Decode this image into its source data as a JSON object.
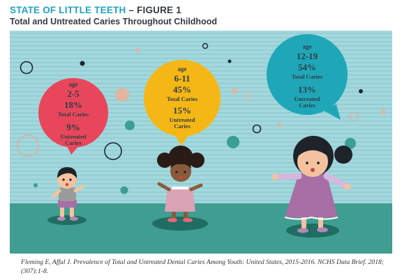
{
  "header": {
    "title": "STATE OF LITTLE TEETH",
    "figure_label": "– FIGURE 1",
    "subtitle": "Total and Untreated Caries Throughout Childhood"
  },
  "chart_data": {
    "type": "bar",
    "title": "Total and Untreated Caries Throughout Childhood",
    "categories": [
      "2-5",
      "6-11",
      "12-19"
    ],
    "series": [
      {
        "name": "Total Caries",
        "values": [
          18,
          45,
          54
        ]
      },
      {
        "name": "Untreated Caries",
        "values": [
          9,
          15,
          13
        ]
      }
    ],
    "unit": "%"
  },
  "bubbles": [
    {
      "age_label": "age",
      "age": "2-5",
      "total_pct": "18%",
      "total_label": "Total Caries",
      "untreated_pct": "9%",
      "untreated_label": [
        "Untreated",
        "Caries"
      ],
      "color": "#e8475b"
    },
    {
      "age_label": "age",
      "age": "6-11",
      "total_pct": "45%",
      "total_label": "Total Caries",
      "untreated_pct": "15%",
      "untreated_label": [
        "Untreated",
        "Caries"
      ],
      "color": "#f5b716"
    },
    {
      "age_label": "age",
      "age": "12-19",
      "total_pct": "54%",
      "total_label": "Total Caries",
      "untreated_pct": "13%",
      "untreated_label": [
        "Untreated",
        "Caries"
      ],
      "color": "#1fa7b8"
    }
  ],
  "colors": {
    "accent": "#1fa3c2",
    "wall": "#9fd6dc",
    "stripe": "#8ccbd2",
    "floor": "#3f9d91",
    "text_dark": "#333b44",
    "bubble_text": "#2f3b45"
  },
  "citation": "Fleming E, Afful J. Prevalence of  Total and Untreated Dental Caries Among Youth: United States, 2015-2016. NCHS Data Brief. 2018;(307):1-8."
}
